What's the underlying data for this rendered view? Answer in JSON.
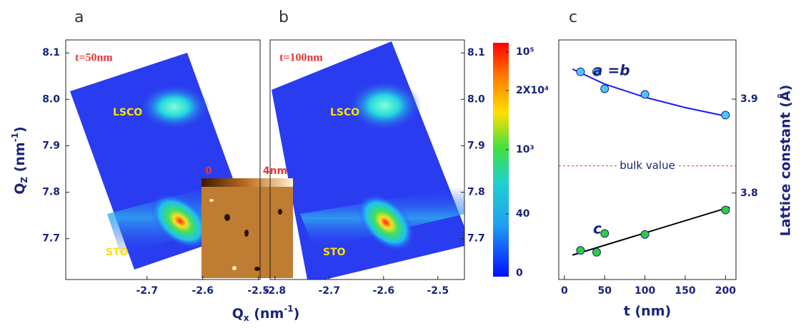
{
  "chart_data": [
    {
      "type": "heatmap",
      "panel_label": "a",
      "annotation": "t=50nm",
      "features": [
        "LSCO",
        "STO"
      ],
      "xlabel": {
        "text": "Q",
        "sub": "x",
        "unit": " (nm",
        "sup": "-1",
        "close": ")"
      },
      "ylabel": {
        "text": "Q",
        "sub": "Z",
        "unit": " (nm",
        "sup": "-1",
        "close": ")"
      },
      "xlim": [
        -2.846,
        -2.497
      ],
      "xticks": [
        -2.7,
        -2.6,
        -2.5
      ],
      "ylim": [
        7.612,
        8.128
      ],
      "yticks": [
        8.1,
        {
          "value": 8.0,
          "label": "8.0"
        },
        7.9,
        7.8,
        7.7
      ],
      "y_axis_side": "left",
      "inset_scale": [
        0,
        {
          "value": 4,
          "label": "4nm"
        }
      ]
    },
    {
      "type": "heatmap",
      "panel_label": "b",
      "annotation": "t=100nm",
      "features": [
        "LSCO",
        "STO"
      ],
      "xlim": [
        -2.809,
        -2.451
      ],
      "xticks": [
        -2.8,
        -2.7,
        -2.6,
        -2.5
      ],
      "ylim": [
        7.612,
        8.128
      ],
      "yticks": [
        8.1,
        {
          "value": 8.0,
          "label": "8.0"
        },
        7.9,
        7.8,
        7.7
      ],
      "y_axis_side": "right",
      "colorbar_ticks": [
        {
          "value": 100000,
          "label": "10⁵"
        },
        {
          "value": 20000,
          "label": "2X10⁴"
        },
        {
          "value": 1000,
          "label": "10³"
        },
        40,
        0
      ]
    },
    {
      "type": "scatter",
      "panel_label": "c",
      "xlabel": "t (nm)",
      "ylabel": "Lattice constant (Å)",
      "xlim": [
        -7,
        213
      ],
      "xticks": [
        0,
        50,
        100,
        150,
        200
      ],
      "ylim": [
        3.708,
        3.963
      ],
      "yticks": [
        3.9,
        3.8
      ],
      "y_axis_side": "right",
      "x": [
        20,
        40,
        50,
        100,
        200
      ],
      "series": [
        {
          "name": "a =b",
          "color": "#4fc3f7",
          "values": [
            3.929,
            3.929,
            3.911,
            3.905,
            3.883
          ]
        },
        {
          "name": "c",
          "color": "#2ecc40",
          "values": [
            3.739,
            3.737,
            3.757,
            3.756,
            3.782
          ]
        }
      ],
      "fits": [
        {
          "color": "#1a1aff",
          "x": [
            10,
            50,
            100,
            150,
            200
          ],
          "values": [
            3.932,
            3.916,
            3.902,
            3.891,
            3.882
          ]
        },
        {
          "color": "#000000",
          "x": [
            10,
            205
          ],
          "values": [
            3.734,
            3.785
          ]
        }
      ],
      "reference": {
        "value": 3.829,
        "label": "bulk value",
        "color": "#e53935"
      }
    }
  ]
}
